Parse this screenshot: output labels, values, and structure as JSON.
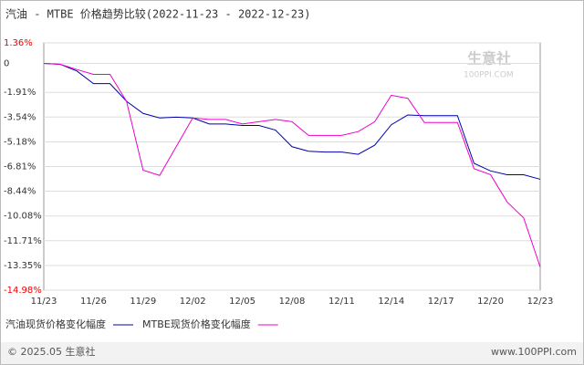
{
  "chart_data": {
    "type": "line",
    "title": "汽油 - MTBE 价格趋势比较(2022-11-23 - 2022-12-23)",
    "categories": [
      "11/23",
      null,
      null,
      "11/26",
      null,
      null,
      "11/29",
      null,
      null,
      "12/02",
      null,
      null,
      "12/05",
      null,
      null,
      "12/08",
      null,
      null,
      "12/11",
      null,
      null,
      "12/14",
      null,
      null,
      "12/17",
      null,
      null,
      "12/20",
      null,
      null,
      "12/23"
    ],
    "series": [
      {
        "name": "汽油现货价格变化幅度",
        "color": "#0000aa",
        "values": [
          0,
          -0.06,
          -0.5,
          -1.33,
          -1.33,
          -2.5,
          -3.3,
          -3.6,
          -3.55,
          -3.6,
          -4.0,
          -4.0,
          -4.1,
          -4.1,
          -4.4,
          -5.5,
          -5.8,
          -5.85,
          -5.85,
          -6.0,
          -5.4,
          -4.05,
          -3.4,
          -3.45,
          -3.45,
          -3.45,
          -6.6,
          -7.1,
          -7.35,
          -7.35,
          -7.65
        ]
      },
      {
        "name": "MTBE现货价格变化幅度",
        "color": "#ee00cc",
        "values": [
          0,
          -0.06,
          -0.4,
          -0.72,
          -0.72,
          -2.5,
          -7.05,
          -7.4,
          -5.5,
          -3.6,
          -3.7,
          -3.7,
          -4.0,
          -3.85,
          -3.7,
          -3.85,
          -4.75,
          -4.75,
          -4.75,
          -4.5,
          -3.85,
          -2.1,
          -2.3,
          -3.9,
          -3.9,
          -3.9,
          -6.95,
          -7.35,
          -9.15,
          -10.2,
          -13.45
        ]
      }
    ],
    "ylim": [
      -14.98,
      1.36
    ],
    "yticks": [
      {
        "value": 1.36,
        "label": "1.36%"
      },
      0,
      {
        "value": -1.91,
        "label": "-1.91%"
      },
      {
        "value": -3.54,
        "label": "-3.54%"
      },
      {
        "value": -5.18,
        "label": "-5.18%"
      },
      {
        "value": -6.81,
        "label": "-6.81%"
      },
      {
        "value": -8.44,
        "label": "-8.44%"
      },
      {
        "value": -10.08,
        "label": "-10.08%"
      },
      {
        "value": -11.71,
        "label": "-11.71%"
      },
      {
        "value": -13.35,
        "label": "-13.35%"
      },
      {
        "value": -14.98,
        "label": "-14.98%"
      }
    ],
    "grid": true,
    "watermark": [
      "生意社",
      "100PPI.COM"
    ],
    "footer": {
      "left": "© 2025.05 生意社",
      "right": "www.100PPI.com"
    }
  }
}
